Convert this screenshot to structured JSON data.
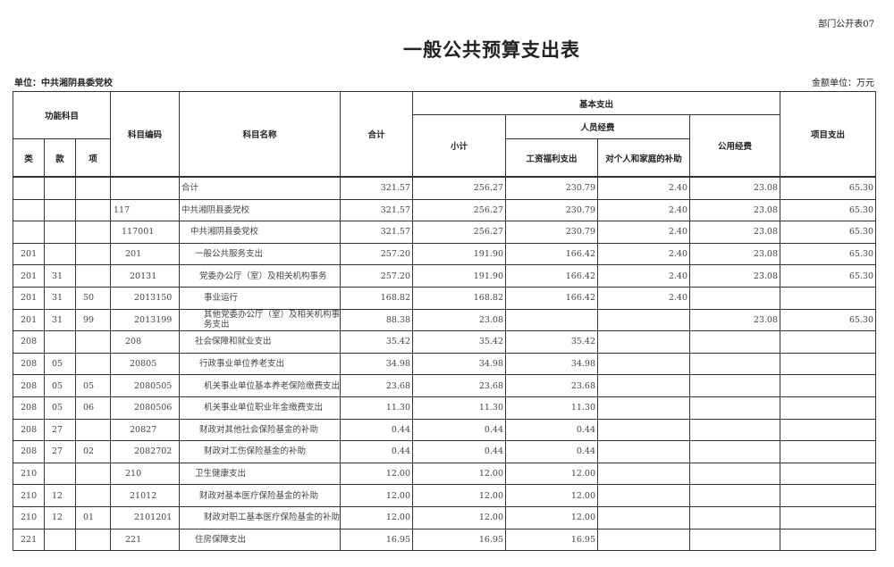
{
  "form_no": "部门公开表07",
  "title": "一般公共预算支出表",
  "unit": "单位：中共湘阴县委党校",
  "money_unit": "金额单位：万元",
  "headers": {
    "func_subject": "功能科目",
    "lei": "类",
    "kuan": "款",
    "xiang": "项",
    "code": "科目编码",
    "name": "科目名称",
    "total": "合计",
    "basic": "基本支出",
    "subtotal": "小计",
    "personnel": "人员经费",
    "wages": "工资福利支出",
    "subsidy": "对个人和家庭的补助",
    "public": "公用经费",
    "project": "项目支出"
  },
  "rows": [
    {
      "lei": "",
      "kuan": "",
      "xiang": "",
      "code": "",
      "name": "合计",
      "level": 0,
      "total": "321.57",
      "subtotal": "256.27",
      "wages": "230.79",
      "subsidy": "2.40",
      "public": "23.08",
      "project": "65.30"
    },
    {
      "lei": "",
      "kuan": "",
      "xiang": "",
      "code": "117",
      "name": "中共湘阴县委党校",
      "level": 0,
      "total": "321.57",
      "subtotal": "256.27",
      "wages": "230.79",
      "subsidy": "2.40",
      "public": "23.08",
      "project": "65.30"
    },
    {
      "lei": "",
      "kuan": "",
      "xiang": "",
      "code": "117001",
      "name": "中共湘阴县委党校",
      "level": 1,
      "total": "321.57",
      "subtotal": "256.27",
      "wages": "230.79",
      "subsidy": "2.40",
      "public": "23.08",
      "project": "65.30"
    },
    {
      "lei": "201",
      "kuan": "",
      "xiang": "",
      "code": "201",
      "name": "一般公共服务支出",
      "level": 2,
      "total": "257.20",
      "subtotal": "191.90",
      "wages": "166.42",
      "subsidy": "2.40",
      "public": "23.08",
      "project": "65.30"
    },
    {
      "lei": "201",
      "kuan": "31",
      "xiang": "",
      "code": "20131",
      "name": "党委办公厅（室）及相关机构事务",
      "level": 3,
      "total": "257.20",
      "subtotal": "191.90",
      "wages": "166.42",
      "subsidy": "2.40",
      "public": "23.08",
      "project": "65.30"
    },
    {
      "lei": "201",
      "kuan": "31",
      "xiang": "50",
      "code": "2013150",
      "name": "事业运行",
      "level": 4,
      "total": "168.82",
      "subtotal": "168.82",
      "wages": "166.42",
      "subsidy": "2.40",
      "public": "",
      "project": ""
    },
    {
      "lei": "201",
      "kuan": "31",
      "xiang": "99",
      "code": "2013199",
      "name": "其他党委办公厅（室）及相关机构事务支出",
      "level": 4,
      "total": "88.38",
      "subtotal": "23.08",
      "wages": "",
      "subsidy": "",
      "public": "23.08",
      "project": "65.30"
    },
    {
      "lei": "208",
      "kuan": "",
      "xiang": "",
      "code": "208",
      "name": "社会保障和就业支出",
      "level": 2,
      "total": "35.42",
      "subtotal": "35.42",
      "wages": "35.42",
      "subsidy": "",
      "public": "",
      "project": ""
    },
    {
      "lei": "208",
      "kuan": "05",
      "xiang": "",
      "code": "20805",
      "name": "行政事业单位养老支出",
      "level": 3,
      "total": "34.98",
      "subtotal": "34.98",
      "wages": "34.98",
      "subsidy": "",
      "public": "",
      "project": ""
    },
    {
      "lei": "208",
      "kuan": "05",
      "xiang": "05",
      "code": "2080505",
      "name": "机关事业单位基本养老保险缴费支出",
      "level": 4,
      "total": "23.68",
      "subtotal": "23.68",
      "wages": "23.68",
      "subsidy": "",
      "public": "",
      "project": ""
    },
    {
      "lei": "208",
      "kuan": "05",
      "xiang": "06",
      "code": "2080506",
      "name": "机关事业单位职业年金缴费支出",
      "level": 4,
      "total": "11.30",
      "subtotal": "11.30",
      "wages": "11.30",
      "subsidy": "",
      "public": "",
      "project": ""
    },
    {
      "lei": "208",
      "kuan": "27",
      "xiang": "",
      "code": "20827",
      "name": "财政对其他社会保险基金的补助",
      "level": 3,
      "total": "0.44",
      "subtotal": "0.44",
      "wages": "0.44",
      "subsidy": "",
      "public": "",
      "project": ""
    },
    {
      "lei": "208",
      "kuan": "27",
      "xiang": "02",
      "code": "2082702",
      "name": "财政对工伤保险基金的补助",
      "level": 4,
      "total": "0.44",
      "subtotal": "0.44",
      "wages": "0.44",
      "subsidy": "",
      "public": "",
      "project": ""
    },
    {
      "lei": "210",
      "kuan": "",
      "xiang": "",
      "code": "210",
      "name": "卫生健康支出",
      "level": 2,
      "total": "12.00",
      "subtotal": "12.00",
      "wages": "12.00",
      "subsidy": "",
      "public": "",
      "project": ""
    },
    {
      "lei": "210",
      "kuan": "12",
      "xiang": "",
      "code": "21012",
      "name": "财政对基本医疗保险基金的补助",
      "level": 3,
      "total": "12.00",
      "subtotal": "12.00",
      "wages": "12.00",
      "subsidy": "",
      "public": "",
      "project": ""
    },
    {
      "lei": "210",
      "kuan": "12",
      "xiang": "01",
      "code": "2101201",
      "name": "财政对职工基本医疗保险基金的补助",
      "level": 4,
      "total": "12.00",
      "subtotal": "12.00",
      "wages": "12.00",
      "subsidy": "",
      "public": "",
      "project": ""
    },
    {
      "lei": "221",
      "kuan": "",
      "xiang": "",
      "code": "221",
      "name": "住房保障支出",
      "level": 2,
      "total": "16.95",
      "subtotal": "16.95",
      "wages": "16.95",
      "subsidy": "",
      "public": "",
      "project": ""
    }
  ]
}
